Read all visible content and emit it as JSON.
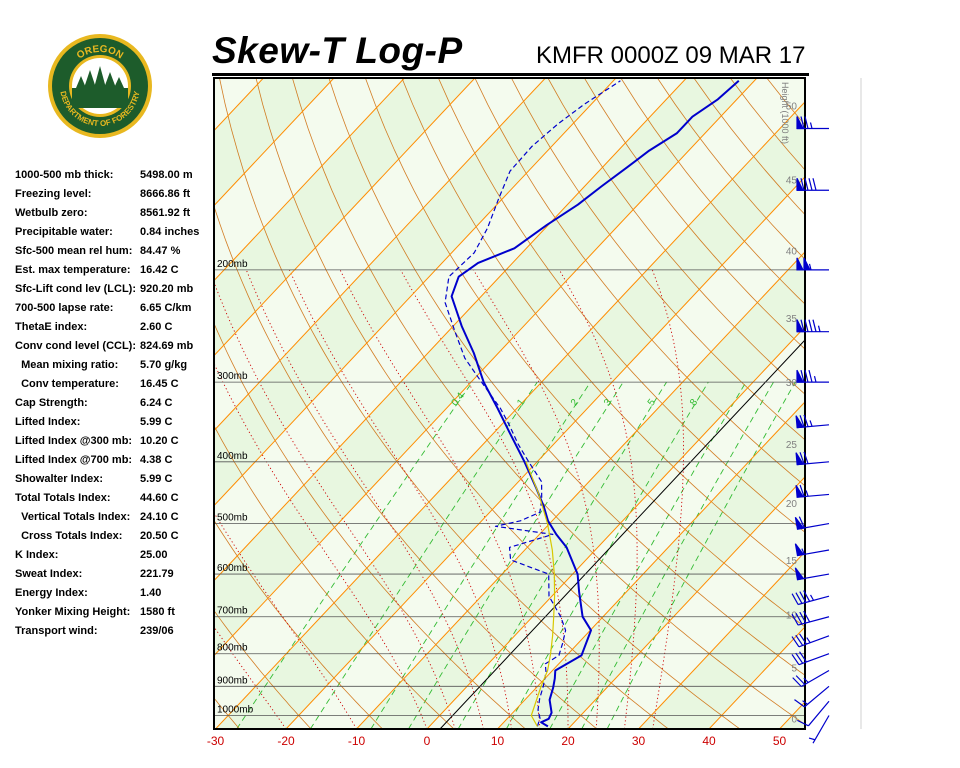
{
  "header": {
    "title": "Skew-T Log-P",
    "station": "KMFR 0000Z 09 MAR 17"
  },
  "logo": {
    "text_top": "OREGON",
    "text_bottom": "DEPARTMENT OF FORESTRY",
    "colors": {
      "green": "#1d5c2b",
      "gold": "#e8b820"
    }
  },
  "indices": [
    {
      "label": "1000-500 mb thick:",
      "value": "5498.00 m"
    },
    {
      "label": "Freezing level:",
      "value": "8666.86 ft"
    },
    {
      "label": "Wetbulb zero:",
      "value": "8561.92 ft"
    },
    {
      "label": "Precipitable water:",
      "value": "0.84 inches"
    },
    {
      "label": "Sfc-500 mean rel hum:",
      "value": "84.47 %"
    },
    {
      "label": "Est. max temperature:",
      "value": "16.42 C"
    },
    {
      "label": "Sfc-Lift cond lev (LCL):",
      "value": "920.20 mb"
    },
    {
      "label": "700-500 lapse rate:",
      "value": "6.65 C/km"
    },
    {
      "label": "ThetaE index:",
      "value": "2.60 C"
    },
    {
      "label": "Conv cond level (CCL):",
      "value": "824.69 mb"
    },
    {
      "label": "  Mean mixing ratio:",
      "value": "5.70 g/kg"
    },
    {
      "label": "  Conv temperature:",
      "value": "16.45 C"
    },
    {
      "label": "Cap Strength:",
      "value": "6.24 C"
    },
    {
      "label": "Lifted Index:",
      "value": "5.99 C"
    },
    {
      "label": "Lifted Index @300 mb:",
      "value": "10.20 C"
    },
    {
      "label": "Lifted Index @700 mb:",
      "value": "4.38 C"
    },
    {
      "label": "Showalter Index:",
      "value": "5.99 C"
    },
    {
      "label": "Total Totals Index:",
      "value": "44.60 C"
    },
    {
      "label": "  Vertical Totals Index:",
      "value": "24.10 C"
    },
    {
      "label": "  Cross Totals Index:",
      "value": "20.50 C"
    },
    {
      "label": "K Index:",
      "value": "25.00"
    },
    {
      "label": "Sweat Index:",
      "value": "221.79"
    },
    {
      "label": "Energy Index:",
      "value": "1.40"
    },
    {
      "label": "Yonker Mixing Height:",
      "value": "1580 ft"
    },
    {
      "label": "Transport wind:",
      "value": "239/06"
    }
  ],
  "chart_data": {
    "type": "line",
    "subtype": "skew-t log-p diagram",
    "xlim": [
      -30,
      50
    ],
    "pressure_range_mb": [
      1050,
      100
    ],
    "x_ticks": [
      -30,
      -20,
      -10,
      0,
      10,
      20,
      30,
      40,
      50
    ],
    "x_tick_labels": [
      "-30",
      "-20",
      "-10",
      "0",
      "10",
      "20",
      "30",
      "40",
      "50"
    ],
    "pressure_levels": [
      1000,
      900,
      800,
      700,
      600,
      500,
      400,
      300,
      200
    ],
    "pressure_labels": [
      "1000mb",
      "900mb",
      "800mb",
      "700mb",
      "600mb",
      "500mb",
      "400mb",
      "300mb",
      "200mb"
    ],
    "height_axis_label": "Height (1000 ft)",
    "height_ticks": [
      0,
      5,
      10,
      15,
      20,
      25,
      30,
      35,
      40,
      45,
      50
    ],
    "mixing_ratio_labels": [
      "0.4",
      "1",
      "2",
      "3",
      "5",
      "8"
    ],
    "series": [
      {
        "role": "temperature",
        "color": "#0000cc",
        "points": [
          [
            1040,
            16.8
          ],
          [
            1025,
            15.3
          ],
          [
            1012,
            15.9
          ],
          [
            990,
            15.5
          ],
          [
            945,
            13.5
          ],
          [
            905,
            12.4
          ],
          [
            875,
            11.4
          ],
          [
            850,
            10.4
          ],
          [
            805,
            12.1
          ],
          [
            735,
            10.1
          ],
          [
            700,
            7.1
          ],
          [
            640,
            3.3
          ],
          [
            600,
            0.7
          ],
          [
            545,
            -4.4
          ],
          [
            520,
            -7.6
          ],
          [
            495,
            -10.6
          ],
          [
            470,
            -13.1
          ],
          [
            440,
            -16.6
          ],
          [
            400,
            -21.8
          ],
          [
            360,
            -27.8
          ],
          [
            330,
            -32.7
          ],
          [
            300,
            -38.2
          ],
          [
            270,
            -43.5
          ],
          [
            245,
            -48.8
          ],
          [
            220,
            -54.2
          ],
          [
            205,
            -55.8
          ],
          [
            195,
            -54.9
          ],
          [
            185,
            -51.7
          ],
          [
            170,
            -50.2
          ],
          [
            158,
            -48.5
          ],
          [
            148,
            -47.6
          ],
          [
            138,
            -46.5
          ],
          [
            130,
            -45.6
          ],
          [
            122,
            -44.0
          ],
          [
            115,
            -44.0
          ],
          [
            108,
            -42.7
          ],
          [
            101,
            -42.2
          ]
        ]
      },
      {
        "role": "dewpoint",
        "color": "#0000cc",
        "dashed": true,
        "points": [
          [
            1040,
            15.3
          ],
          [
            1010,
            14.6
          ],
          [
            980,
            13.2
          ],
          [
            940,
            11.9
          ],
          [
            900,
            10.8
          ],
          [
            855,
            9.3
          ],
          [
            830,
            8.1
          ],
          [
            805,
            8.9
          ],
          [
            770,
            7.8
          ],
          [
            735,
            6.5
          ],
          [
            700,
            4.0
          ],
          [
            650,
            -0.4
          ],
          [
            600,
            -3.4
          ],
          [
            570,
            -10.7
          ],
          [
            545,
            -12.5
          ],
          [
            520,
            -8.1
          ],
          [
            505,
            -17.3
          ],
          [
            495,
            -14.5
          ],
          [
            480,
            -12.9
          ],
          [
            460,
            -14.2
          ],
          [
            430,
            -16.7
          ],
          [
            400,
            -21.2
          ],
          [
            375,
            -25.1
          ],
          [
            350,
            -28.9
          ],
          [
            330,
            -32.3
          ],
          [
            300,
            -38.5
          ],
          [
            275,
            -44.1
          ],
          [
            250,
            -49.0
          ],
          [
            225,
            -54.3
          ],
          [
            205,
            -57.2
          ],
          [
            188,
            -56.8
          ],
          [
            172,
            -58.2
          ],
          [
            155,
            -60.5
          ],
          [
            140,
            -62.6
          ],
          [
            128,
            -62.8
          ],
          [
            118,
            -62.1
          ],
          [
            110,
            -61.0
          ],
          [
            101,
            -59.0
          ]
        ]
      },
      {
        "role": "parcel",
        "color": "#d8c800",
        "points": [
          [
            1040,
            15.3
          ],
          [
            1000,
            13.0
          ],
          [
            900,
            10.5
          ],
          [
            850,
            9.3
          ],
          [
            800,
            7.5
          ],
          [
            750,
            5.4
          ],
          [
            700,
            3.0
          ],
          [
            650,
            0.4
          ],
          [
            600,
            -2.6
          ],
          [
            550,
            -6.1
          ],
          [
            500,
            -10.3
          ],
          [
            450,
            -15.4
          ],
          [
            400,
            -21.6
          ]
        ]
      }
    ],
    "wind_barbs_kt": [
      {
        "p": 1000,
        "dir": 210,
        "spd": 5
      },
      {
        "p": 950,
        "dir": 220,
        "spd": 10
      },
      {
        "p": 900,
        "dir": 230,
        "spd": 15
      },
      {
        "p": 850,
        "dir": 240,
        "spd": 25
      },
      {
        "p": 800,
        "dir": 250,
        "spd": 30
      },
      {
        "p": 750,
        "dir": 250,
        "spd": 35
      },
      {
        "p": 700,
        "dir": 255,
        "spd": 40
      },
      {
        "p": 650,
        "dir": 255,
        "spd": 45
      },
      {
        "p": 600,
        "dir": 260,
        "spd": 50
      },
      {
        "p": 550,
        "dir": 260,
        "spd": 55
      },
      {
        "p": 500,
        "dir": 260,
        "spd": 60
      },
      {
        "p": 450,
        "dir": 265,
        "spd": 65
      },
      {
        "p": 400,
        "dir": 265,
        "spd": 70
      },
      {
        "p": 350,
        "dir": 265,
        "spd": 75
      },
      {
        "p": 300,
        "dir": 270,
        "spd": 85
      },
      {
        "p": 250,
        "dir": 270,
        "spd": 95
      },
      {
        "p": 200,
        "dir": 270,
        "spd": 105
      },
      {
        "p": 150,
        "dir": 270,
        "spd": 90
      },
      {
        "p": 120,
        "dir": 270,
        "spd": 75
      }
    ]
  },
  "chart_colors": {
    "plot_background": "#e8f7e0",
    "shaded_band": "#f4fbee",
    "pressure_lines": "#555555",
    "isotherms": "#ff8c00",
    "dry_adiabats": "#cc6600",
    "moist_adiabats": "#cc0000",
    "mixing_ratio": "#33bb33",
    "reference_line": "#000000",
    "sounding": "#0000cc",
    "parcel": "#d8c800",
    "x_tick_text": "#cc0000",
    "height_text": "#808080"
  }
}
